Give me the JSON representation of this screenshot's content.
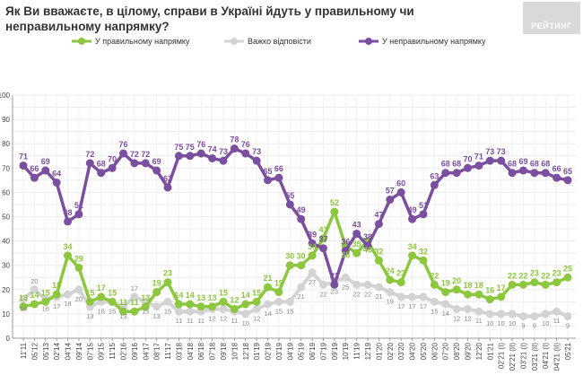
{
  "title": "Як Ви вважаєте, в цілому, справи в Україні йдуть у правильному чи неправильному напрямку?",
  "logo": "РЕЙТИНГ",
  "chart_data": {
    "type": "line",
    "title": "",
    "ylim": [
      0,
      100
    ],
    "yticks": [
      0,
      10,
      20,
      30,
      40,
      50,
      60,
      70,
      80,
      90,
      100
    ],
    "grid": true,
    "legend_position": "top",
    "categories": [
      "11'11",
      "05'12",
      "05'13",
      "02'14",
      "04'14",
      "09'14",
      "07'15",
      "09'15",
      "11'15",
      "02'16",
      "09'16",
      "04'17",
      "08'17",
      "11'17",
      "03'18",
      "04'18",
      "06'18",
      "07'18",
      "09'18",
      "10'18",
      "12'18",
      "01'19",
      "02'19",
      "03'19",
      "04'19",
      "05'19",
      "06'19",
      "07'19",
      "09'19",
      "10'19",
      "11'19",
      "12'19",
      "01'20",
      "02'20",
      "03'20",
      "04'20",
      "05'20",
      "06'20",
      "07'20",
      "08'20",
      "09'20",
      "12'20",
      "01'21",
      "02'21 (I)",
      "02'21 (II)",
      "03'21 (I)",
      "03'21 (II)",
      "04'21 (I)",
      "04'21 (II)",
      "05'21"
    ],
    "series": [
      {
        "name": "У правильному напрямку",
        "color": "#8dc63f",
        "values": [
          13,
          14,
          15,
          18,
          34,
          29,
          15,
          17,
          15,
          11,
          11,
          13,
          19,
          23,
          14,
          14,
          13,
          13,
          15,
          12,
          14,
          15,
          21,
          19,
          30,
          30,
          34,
          41,
          52,
          38,
          35,
          40,
          32,
          24,
          23,
          34,
          32,
          22,
          19,
          20,
          18,
          18,
          16,
          17,
          22,
          22,
          23,
          22,
          23,
          25
        ]
      },
      {
        "name": "Важко відповісти",
        "color": "#d3d3d3",
        "label_color": "#8a8a8a",
        "values": [
          16,
          20,
          16,
          17,
          18,
          20,
          13,
          15,
          15,
          13,
          17,
          15,
          13,
          15,
          11,
          11,
          11,
          12,
          12,
          11,
          10,
          12,
          14,
          15,
          15,
          21,
          27,
          22,
          23,
          25,
          22,
          22,
          21,
          19,
          17,
          17,
          17,
          15,
          14,
          12,
          12,
          11,
          10,
          10,
          10,
          9,
          9,
          10,
          11,
          9
        ]
      },
      {
        "name": "У неправильному напрямку",
        "color": "#7b4fa0",
        "values": [
          71,
          66,
          69,
          64,
          48,
          51,
          72,
          68,
          70,
          76,
          72,
          72,
          69,
          62,
          75,
          75,
          76,
          74,
          73,
          78,
          76,
          73,
          65,
          66,
          55,
          49,
          39,
          37,
          22,
          36,
          43,
          38,
          47,
          57,
          60,
          49,
          51,
          63,
          68,
          68,
          70,
          71,
          73,
          73,
          68,
          69,
          68,
          68,
          66,
          65
        ]
      }
    ]
  }
}
